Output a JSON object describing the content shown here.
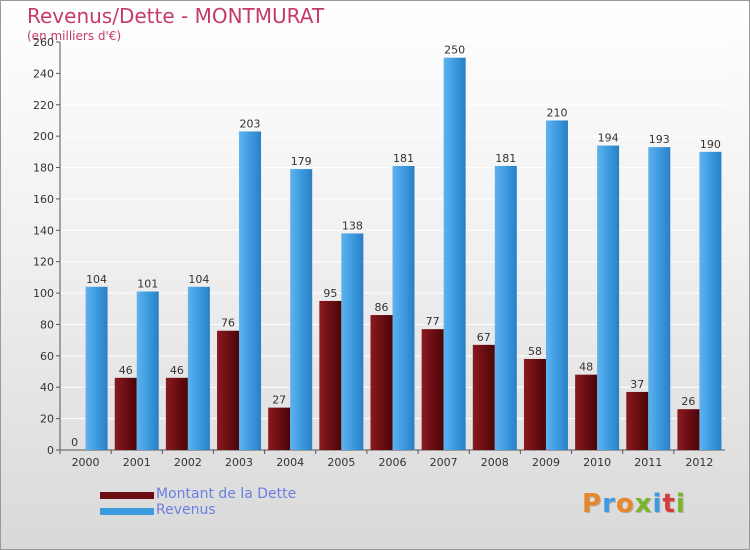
{
  "title": "Revenus/Dette - MONTMURAT",
  "subtitle": "(en milliers d'€)",
  "logo": "Proxiti",
  "colors": {
    "dette": "#6b0e12",
    "revenus": "#3d9be0",
    "title": "#c63a6a",
    "legend_text": "#6a7fe0"
  },
  "legend": [
    {
      "name": "Montant de la Dette",
      "color": "#6b0e12"
    },
    {
      "name": "Revenus",
      "color": "#3d9be0"
    }
  ],
  "chart_data": {
    "type": "bar",
    "title": "Revenus/Dette - MONTMURAT",
    "subtitle": "(en milliers d'€)",
    "xlabel": "",
    "ylabel": "",
    "categories": [
      "2000",
      "2001",
      "2002",
      "2003",
      "2004",
      "2005",
      "2006",
      "2007",
      "2008",
      "2009",
      "2010",
      "2011",
      "2012"
    ],
    "series": [
      {
        "name": "Montant de la Dette",
        "values": [
          0,
          46,
          46,
          76,
          27,
          95,
          86,
          77,
          67,
          58,
          48,
          37,
          26
        ]
      },
      {
        "name": "Revenus",
        "values": [
          104,
          101,
          104,
          203,
          179,
          138,
          181,
          250,
          181,
          210,
          194,
          193,
          190
        ]
      }
    ],
    "yticks": [
      0,
      20,
      40,
      60,
      80,
      100,
      120,
      140,
      160,
      180,
      200,
      220,
      240,
      260
    ],
    "ylim": [
      0,
      260
    ],
    "grid": true,
    "legend_position": "bottom-left"
  }
}
